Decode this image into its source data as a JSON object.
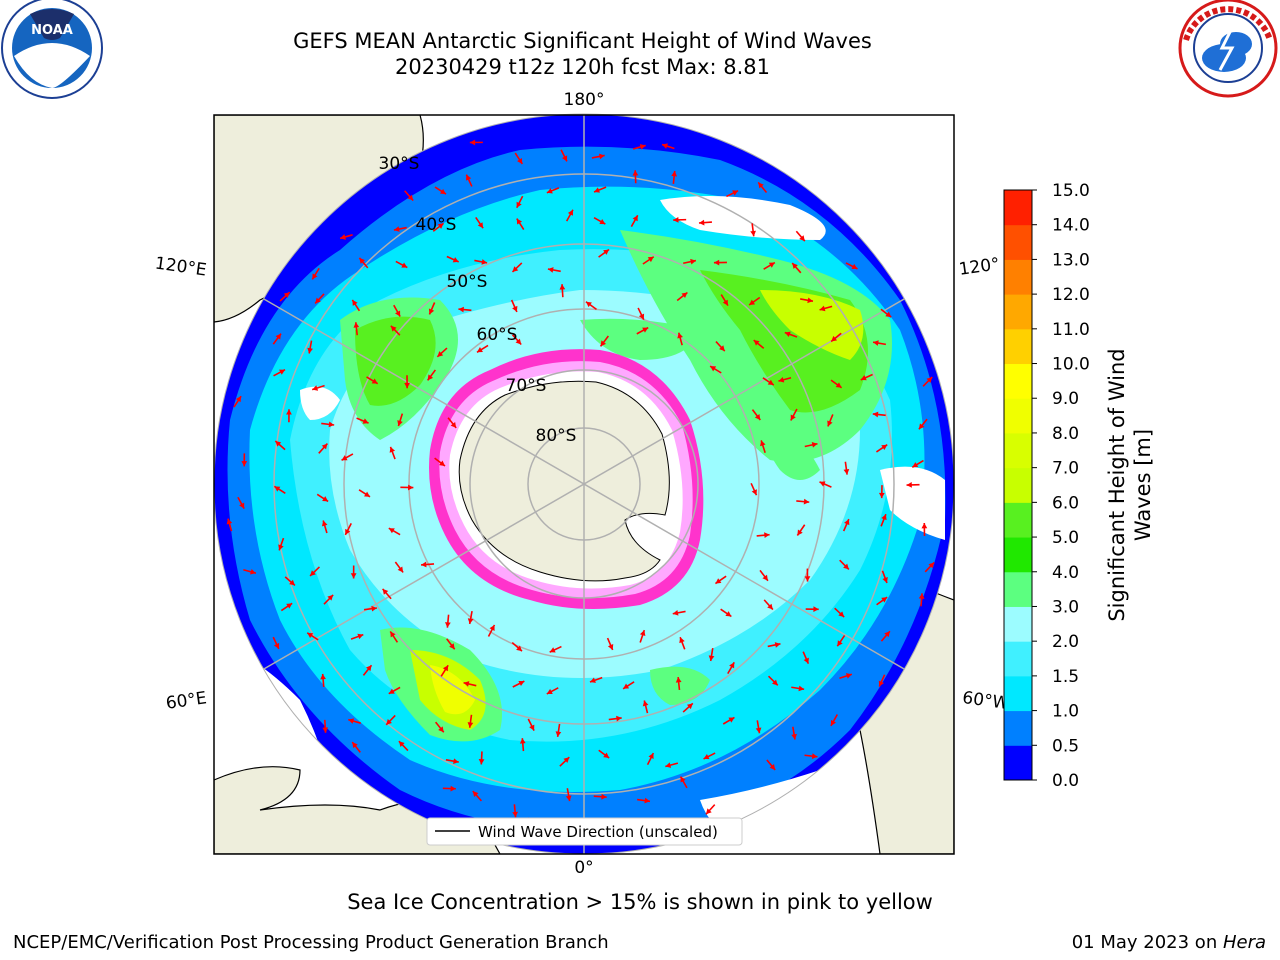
{
  "header": {
    "title_line1": "GEFS MEAN Antarctic Significant Height of Wind Waves",
    "title_line2": "20230429 t12z 120h fcst   Max: 8.81"
  },
  "logos": {
    "left": {
      "name": "noaa-logo",
      "text": "NOAA"
    },
    "right": {
      "name": "national-weather-service-logo"
    }
  },
  "map": {
    "longitude_labels": [
      "180°",
      "120°E",
      "120°",
      "60°E",
      "60°W",
      "0°"
    ],
    "latitude_labels": [
      "30°S",
      "40°S",
      "50°S",
      "60°S",
      "70°S",
      "80°S"
    ],
    "legend_label": "Wind Wave Direction (unscaled)",
    "colors": {
      "land": "#eeeedc",
      "arrow": "#ff0000",
      "ice_edge": "#ff33cc",
      "grid": "#b0b0b0"
    }
  },
  "colorbar": {
    "label": "Significant Height of Wind Waves [m]",
    "ticks": [
      "0.0",
      "0.5",
      "1.0",
      "1.5",
      "2.0",
      "3.0",
      "4.0",
      "5.0",
      "6.0",
      "7.0",
      "8.0",
      "9.0",
      "10.0",
      "11.0",
      "12.0",
      "13.0",
      "14.0",
      "15.0"
    ],
    "colors": [
      "#0000ff",
      "#0080ff",
      "#00e8ff",
      "#40f0ff",
      "#9cfcff",
      "#5cff80",
      "#20e800",
      "#58f020",
      "#c8ff00",
      "#d8ff00",
      "#f0ff00",
      "#ffff00",
      "#ffd000",
      "#ffa800",
      "#ff8000",
      "#ff5000",
      "#ff2000"
    ]
  },
  "note": "Sea Ice Concentration > 15% is shown in pink to yellow",
  "footer": {
    "left": "NCEP/EMC/Verification Post Processing Product Generation Branch",
    "right_date": "01 May 2023 on ",
    "right_host": "Hera"
  }
}
